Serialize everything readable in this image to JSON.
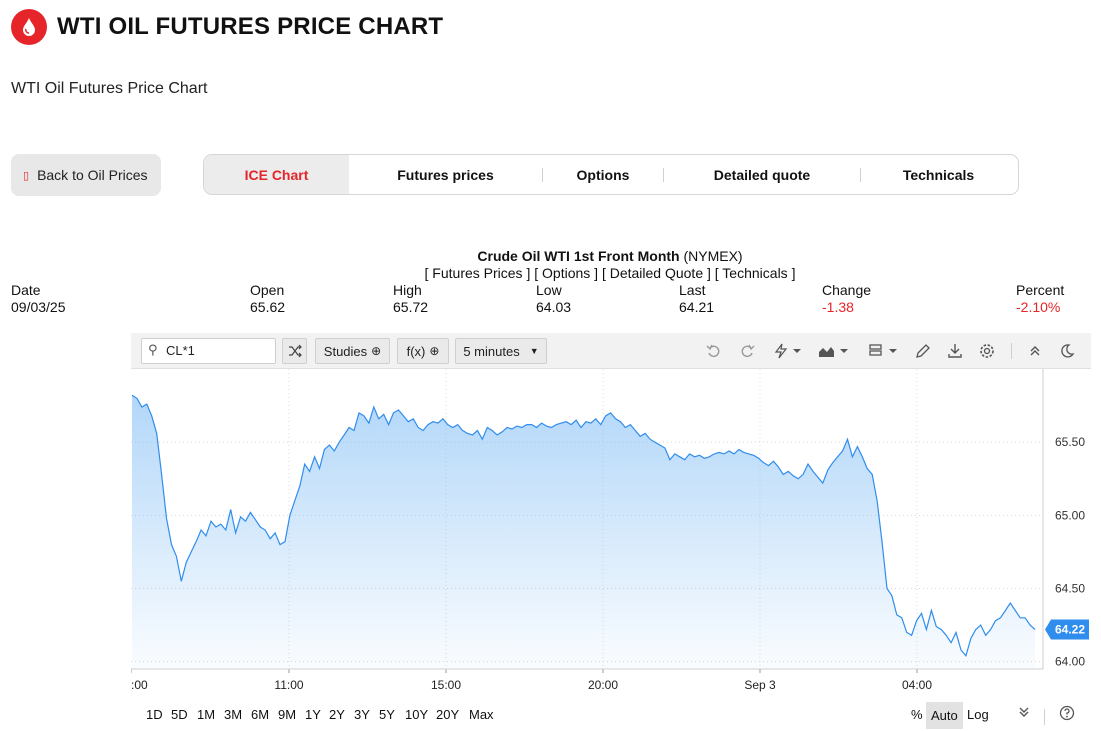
{
  "header": {
    "title": "WTI OIL FUTURES PRICE CHART",
    "subtitle": "WTI Oil Futures Price Chart",
    "logo_icon": "oil-drop-icon",
    "accent": "#e5252a"
  },
  "back_button": {
    "label": "Back to Oil Prices",
    "icon": "back-icon"
  },
  "tabs": [
    {
      "label": "ICE Chart",
      "active": true
    },
    {
      "label": "Futures prices"
    },
    {
      "label": "Options"
    },
    {
      "label": "Detailed quote"
    },
    {
      "label": "Technicals"
    }
  ],
  "quote": {
    "instrument": "Crude Oil WTI 1st Front Month",
    "exchange": "(NYMEX)",
    "links": [
      "[ Futures Prices ]",
      "[ Options ]",
      "[ Detailed Quote ]",
      "[ Technicals ]"
    ],
    "columns": [
      {
        "label": "Date",
        "value": "09/03/25"
      },
      {
        "label": "Open",
        "value": "65.62"
      },
      {
        "label": "High",
        "value": "65.72"
      },
      {
        "label": "Low",
        "value": "64.03"
      },
      {
        "label": "Last",
        "value": "64.21"
      },
      {
        "label": "Change",
        "value": "-1.38",
        "negative": true
      },
      {
        "label": "Percent",
        "value": "-2.10%",
        "negative": true
      }
    ]
  },
  "toolbar": {
    "symbol": "CL*1",
    "studies_label": "Studies",
    "fx_label": "f(x)",
    "interval_label": "5 minutes",
    "icons": [
      "undo-icon",
      "redo-icon",
      "flash-icon",
      "chart-type-icon",
      "template-icon",
      "draw-icon",
      "download-icon",
      "settings-icon",
      "collapse-icon",
      "dark-mode-icon"
    ]
  },
  "bottom": {
    "ranges": [
      "1D",
      "5D",
      "1M",
      "3M",
      "6M",
      "9M",
      "1Y",
      "2Y",
      "3Y",
      "5Y",
      "10Y",
      "20Y",
      "Max"
    ],
    "percent_label": "%",
    "auto_label": "Auto",
    "log_label": "Log"
  },
  "chart_data": {
    "type": "area",
    "symbol": "CL*1",
    "ylim": [
      63.95,
      66.0
    ],
    "y_ticks": [
      64.0,
      64.5,
      65.0,
      65.5
    ],
    "x_tick_labels": [
      ":00",
      "11:00",
      "15:00",
      "20:00",
      "Sep 3",
      "04:00"
    ],
    "last_label": "64.22",
    "line_color": "#2f8ded",
    "values": [
      65.82,
      65.8,
      65.74,
      65.76,
      65.68,
      65.56,
      65.28,
      64.98,
      64.8,
      64.72,
      64.55,
      64.68,
      64.75,
      64.82,
      64.9,
      64.86,
      64.96,
      64.92,
      64.94,
      64.9,
      65.04,
      64.88,
      64.99,
      64.96,
      65.02,
      64.97,
      64.92,
      64.9,
      64.84,
      64.88,
      64.8,
      64.82,
      65.0,
      65.1,
      65.2,
      65.35,
      65.3,
      65.4,
      65.32,
      65.45,
      65.48,
      65.44,
      65.5,
      65.55,
      65.6,
      65.58,
      65.7,
      65.68,
      65.63,
      65.74,
      65.66,
      65.69,
      65.62,
      65.7,
      65.72,
      65.68,
      65.64,
      65.66,
      65.6,
      65.58,
      65.62,
      65.64,
      65.63,
      65.66,
      65.62,
      65.6,
      65.62,
      65.58,
      65.56,
      65.55,
      65.58,
      65.52,
      65.6,
      65.58,
      65.55,
      65.57,
      65.6,
      65.59,
      65.61,
      65.6,
      65.62,
      65.62,
      65.6,
      65.63,
      65.61,
      65.6,
      65.62,
      65.63,
      65.64,
      65.62,
      65.65,
      65.6,
      65.64,
      65.63,
      65.66,
      65.62,
      65.68,
      65.7,
      65.66,
      65.64,
      65.6,
      65.62,
      65.58,
      65.54,
      65.56,
      65.52,
      65.5,
      65.48,
      65.46,
      65.38,
      65.42,
      65.4,
      65.38,
      65.42,
      65.4,
      65.41,
      65.39,
      65.4,
      65.42,
      65.43,
      65.42,
      65.44,
      65.42,
      65.45,
      65.43,
      65.42,
      65.41,
      65.39,
      65.36,
      65.34,
      65.37,
      65.33,
      65.28,
      65.3,
      65.27,
      65.25,
      65.28,
      65.35,
      65.3,
      65.26,
      65.22,
      65.31,
      65.36,
      65.4,
      65.44,
      65.52,
      65.4,
      65.47,
      65.4,
      65.32,
      65.28,
      65.1,
      64.82,
      64.5,
      64.45,
      64.32,
      64.3,
      64.2,
      64.18,
      64.28,
      64.33,
      64.22,
      64.35,
      64.24,
      64.22,
      64.18,
      64.13,
      64.2,
      64.08,
      64.04,
      64.16,
      64.22,
      64.25,
      64.18,
      64.22,
      64.28,
      64.3,
      64.35,
      64.4,
      64.35,
      64.3,
      64.3,
      64.25,
      64.22
    ]
  }
}
